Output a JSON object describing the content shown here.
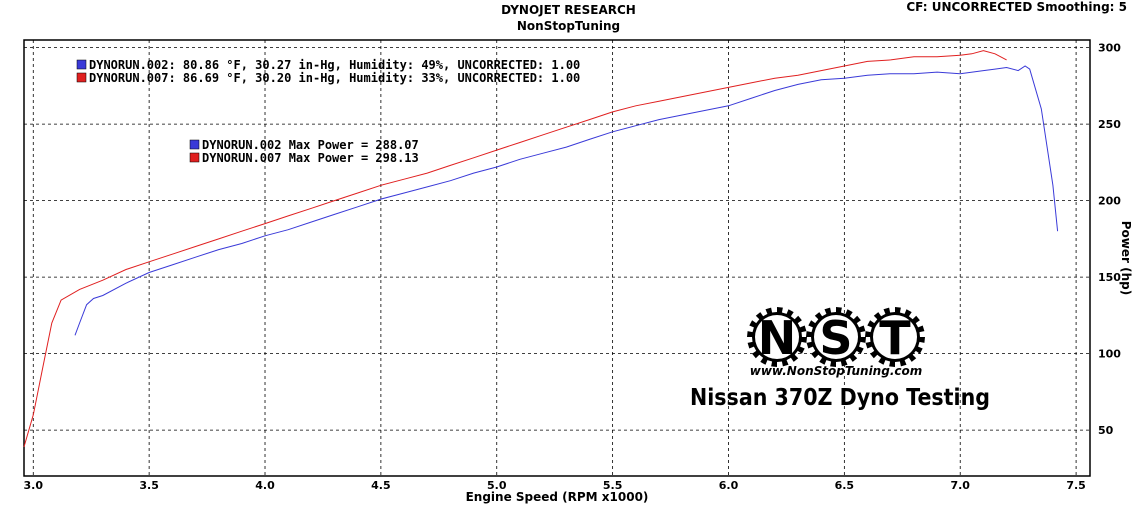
{
  "header": {
    "title": "DYNOJET RESEARCH",
    "subtitle": "NonStopTuning",
    "cf_info": "CF: UNCORRECTED  Smoothing: 5"
  },
  "legend": {
    "runs": [
      {
        "text": "DYNORUN.002: 80.86 °F, 30.27 in-Hg, Humidity: 49%, UNCORRECTED: 1.00",
        "color": "#3a3ad8"
      },
      {
        "text": "DYNORUN.007: 86.69 °F, 30.20 in-Hg, Humidity: 33%, UNCORRECTED: 1.00",
        "color": "#e02020"
      }
    ],
    "max_power": [
      {
        "text": "DYNORUN.002 Max Power = 288.07",
        "color": "#3a3ad8"
      },
      {
        "text": "DYNORUN.007 Max Power = 298.13",
        "color": "#e02020"
      }
    ]
  },
  "logo": {
    "letters": [
      "N",
      "S",
      "T"
    ],
    "url": "www.NonStopTuning.com",
    "caption": "Nissan 370Z Dyno Testing"
  },
  "chart_data": {
    "type": "line",
    "xlabel": "Engine Speed (RPM x1000)",
    "ylabel": "Power (hp)",
    "xlim": [
      2.96,
      7.56
    ],
    "ylim": [
      20,
      305
    ],
    "xticks": [
      "3.0",
      "3.5",
      "4.0",
      "4.5",
      "5.0",
      "5.5",
      "6.0",
      "6.5",
      "7.0",
      "7.5"
    ],
    "yticks": [
      "50",
      "100",
      "150",
      "200",
      "250",
      "300"
    ],
    "grid": true,
    "series": [
      {
        "name": "DYNORUN.002",
        "color": "#3a3ad8",
        "x": [
          3.18,
          3.2,
          3.23,
          3.26,
          3.3,
          3.4,
          3.5,
          3.6,
          3.7,
          3.8,
          3.9,
          4.0,
          4.1,
          4.2,
          4.3,
          4.4,
          4.5,
          4.6,
          4.7,
          4.8,
          4.9,
          5.0,
          5.1,
          5.2,
          5.3,
          5.4,
          5.5,
          5.6,
          5.7,
          5.8,
          5.9,
          6.0,
          6.1,
          6.2,
          6.3,
          6.4,
          6.5,
          6.6,
          6.7,
          6.8,
          6.9,
          7.0,
          7.1,
          7.15,
          7.2,
          7.25,
          7.28,
          7.3,
          7.35,
          7.4,
          7.42
        ],
        "y": [
          112,
          120,
          132,
          136,
          138,
          146,
          153,
          158,
          163,
          168,
          172,
          177,
          181,
          186,
          191,
          196,
          201,
          205,
          209,
          213,
          218,
          222,
          227,
          231,
          235,
          240,
          245,
          249,
          253,
          256,
          259,
          262,
          267,
          272,
          276,
          279,
          280,
          282,
          283,
          283,
          284,
          283,
          285,
          286,
          287,
          285,
          288,
          286,
          260,
          210,
          180
        ]
      },
      {
        "name": "DYNORUN.007",
        "color": "#e02020",
        "x": [
          2.96,
          3.0,
          3.04,
          3.08,
          3.12,
          3.2,
          3.3,
          3.4,
          3.5,
          3.6,
          3.7,
          3.8,
          3.9,
          4.0,
          4.1,
          4.2,
          4.3,
          4.4,
          4.5,
          4.6,
          4.7,
          4.8,
          4.9,
          5.0,
          5.1,
          5.2,
          5.3,
          5.4,
          5.5,
          5.6,
          5.7,
          5.8,
          5.9,
          6.0,
          6.1,
          6.2,
          6.3,
          6.4,
          6.5,
          6.6,
          6.7,
          6.8,
          6.9,
          7.0,
          7.05,
          7.1,
          7.15,
          7.2
        ],
        "y": [
          39,
          60,
          90,
          120,
          135,
          142,
          148,
          155,
          160,
          165,
          170,
          175,
          180,
          185,
          190,
          195,
          200,
          205,
          210,
          214,
          218,
          223,
          228,
          233,
          238,
          243,
          248,
          253,
          258,
          262,
          265,
          268,
          271,
          274,
          277,
          280,
          282,
          285,
          288,
          291,
          292,
          294,
          294,
          295,
          296,
          298,
          296,
          292
        ]
      }
    ]
  }
}
